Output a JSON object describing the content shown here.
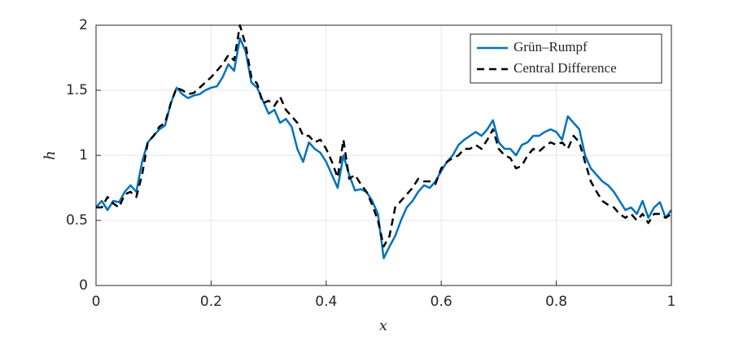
{
  "chart_data": {
    "type": "line",
    "xlabel": "x",
    "ylabel": "h",
    "x": [
      0,
      0.01,
      0.02,
      0.03,
      0.04,
      0.05,
      0.06,
      0.07,
      0.08,
      0.09,
      0.1,
      0.11,
      0.12,
      0.13,
      0.14,
      0.15,
      0.16,
      0.17,
      0.18,
      0.19,
      0.2,
      0.21,
      0.22,
      0.23,
      0.24,
      0.25,
      0.26,
      0.27,
      0.28,
      0.29,
      0.3,
      0.31,
      0.32,
      0.33,
      0.34,
      0.35,
      0.36,
      0.37,
      0.38,
      0.39,
      0.4,
      0.41,
      0.42,
      0.43,
      0.44,
      0.45,
      0.46,
      0.47,
      0.48,
      0.49,
      0.5,
      0.51,
      0.52,
      0.53,
      0.54,
      0.55,
      0.56,
      0.57,
      0.58,
      0.59,
      0.6,
      0.61,
      0.62,
      0.63,
      0.64,
      0.65,
      0.66,
      0.67,
      0.68,
      0.69,
      0.7,
      0.71,
      0.72,
      0.73,
      0.74,
      0.75,
      0.76,
      0.77,
      0.78,
      0.79,
      0.8,
      0.81,
      0.82,
      0.83,
      0.84,
      0.85,
      0.86,
      0.87,
      0.88,
      0.89,
      0.9,
      0.91,
      0.92,
      0.93,
      0.94,
      0.95,
      0.96,
      0.97,
      0.98,
      0.99,
      1
    ],
    "series": [
      {
        "name": "Grün–Rumpf",
        "color": "#0072bd",
        "dash": false,
        "values": [
          0.6,
          0.65,
          0.58,
          0.65,
          0.64,
          0.72,
          0.77,
          0.72,
          0.95,
          1.1,
          1.15,
          1.2,
          1.23,
          1.4,
          1.52,
          1.47,
          1.44,
          1.46,
          1.47,
          1.5,
          1.52,
          1.53,
          1.6,
          1.7,
          1.65,
          1.9,
          1.8,
          1.56,
          1.52,
          1.42,
          1.32,
          1.35,
          1.25,
          1.28,
          1.22,
          1.05,
          0.95,
          1.1,
          1.05,
          1.02,
          0.95,
          0.85,
          0.75,
          1.0,
          0.85,
          0.73,
          0.74,
          0.72,
          0.65,
          0.55,
          0.21,
          0.3,
          0.38,
          0.5,
          0.6,
          0.65,
          0.72,
          0.77,
          0.75,
          0.8,
          0.88,
          0.95,
          1.0,
          1.08,
          1.12,
          1.15,
          1.18,
          1.15,
          1.2,
          1.27,
          1.1,
          1.05,
          1.05,
          1.0,
          1.08,
          1.1,
          1.15,
          1.15,
          1.18,
          1.2,
          1.18,
          1.12,
          1.3,
          1.25,
          1.2,
          1.0,
          0.9,
          0.85,
          0.8,
          0.77,
          0.72,
          0.65,
          0.58,
          0.6,
          0.55,
          0.65,
          0.52,
          0.6,
          0.64,
          0.52,
          0.58
        ]
      },
      {
        "name": "Central Difference",
        "color": "#000000",
        "dash": true,
        "values": [
          0.6,
          0.6,
          0.68,
          0.63,
          0.6,
          0.7,
          0.72,
          0.68,
          0.85,
          1.1,
          1.15,
          1.22,
          1.25,
          1.4,
          1.52,
          1.5,
          1.47,
          1.48,
          1.52,
          1.56,
          1.6,
          1.65,
          1.7,
          1.77,
          1.73,
          2.0,
          1.85,
          1.6,
          1.55,
          1.4,
          1.42,
          1.38,
          1.45,
          1.35,
          1.3,
          1.25,
          1.15,
          1.15,
          1.1,
          1.12,
          1.05,
          0.95,
          0.83,
          1.12,
          0.82,
          0.85,
          0.78,
          0.72,
          0.62,
          0.5,
          0.3,
          0.38,
          0.6,
          0.65,
          0.7,
          0.75,
          0.82,
          0.8,
          0.8,
          0.78,
          0.9,
          0.95,
          0.98,
          1.0,
          1.05,
          1.05,
          1.08,
          1.05,
          1.12,
          1.2,
          1.05,
          1.0,
          0.98,
          0.9,
          0.92,
          1.0,
          1.05,
          1.03,
          1.07,
          1.1,
          1.08,
          1.1,
          1.05,
          1.15,
          1.1,
          0.95,
          0.8,
          0.72,
          0.65,
          0.62,
          0.6,
          0.55,
          0.52,
          0.55,
          0.5,
          0.55,
          0.48,
          0.55,
          0.55,
          0.52,
          0.55
        ]
      }
    ],
    "xlim": [
      0,
      1
    ],
    "ylim": [
      0,
      2
    ],
    "xticks": [
      0,
      0.2,
      0.4,
      0.6,
      0.8,
      1
    ],
    "yticks": [
      0,
      0.5,
      1,
      1.5,
      2
    ],
    "grid": true,
    "legend": "top-right"
  }
}
